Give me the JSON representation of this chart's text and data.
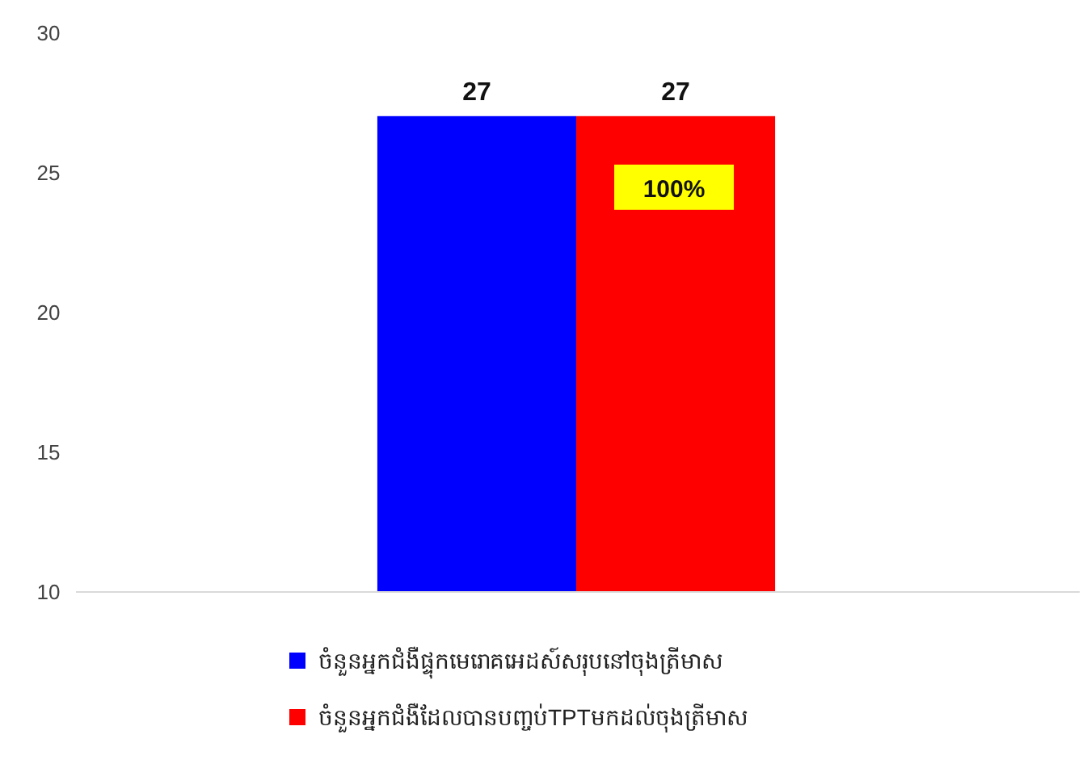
{
  "chart_data": {
    "type": "bar",
    "categories": [
      null
    ],
    "series": [
      {
        "name": "ចំនួនអ្នកជំងឺផ្ទុកមេរោគអេដស៍សរុបនៅចុងត្រីមាស",
        "color": "#0000ff",
        "values": [
          27
        ]
      },
      {
        "name": "ចំនួនអ្នកជំងឺដែលបានបញ្ចប់TPTមកដល់ចុងត្រីមាស",
        "color": "#ff0000",
        "values": [
          27
        ]
      }
    ],
    "ylim": [
      10,
      30
    ],
    "yticks": [
      10,
      15,
      20,
      25,
      30
    ],
    "grid": false,
    "legend": "bottom",
    "data_labels": true,
    "annotations": [
      "100%"
    ]
  }
}
